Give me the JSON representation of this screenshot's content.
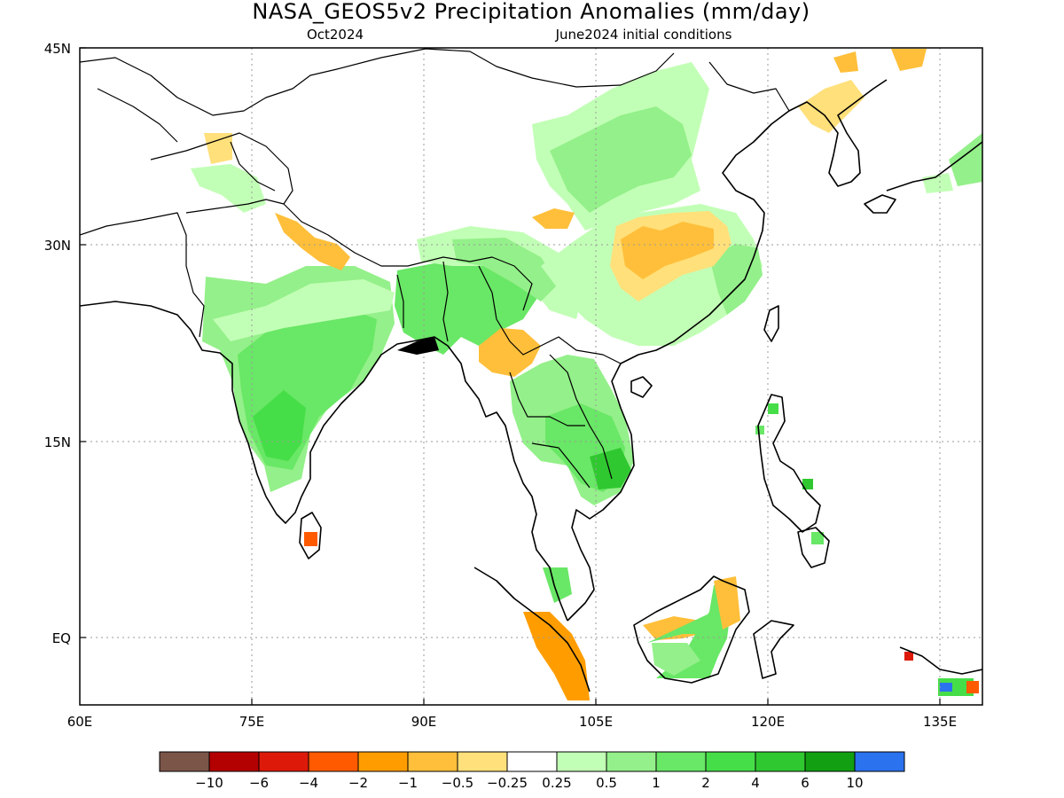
{
  "title": "NASA_GEOS5v2 Precipitation Anomalies (mm/day)",
  "subtitle_left": "Oct2024",
  "subtitle_right": "June2024 initial conditions",
  "lat_ticks": [
    "45N",
    "30N",
    "15N",
    "EQ"
  ],
  "lon_ticks": [
    "60E",
    "75E",
    "90E",
    "105E",
    "120E",
    "135E"
  ],
  "colorbar": {
    "labels": [
      "-10",
      "-6",
      "-4",
      "-2",
      "-1",
      "-0.5",
      "-0.25",
      "0.25",
      "0.5",
      "1",
      "2",
      "4",
      "6",
      "10"
    ],
    "colors": [
      "#7a5548",
      "#b30000",
      "#dd1a0a",
      "#ff5a00",
      "#ff9d00",
      "#ffbf3a",
      "#ffe07a",
      "#ffffff",
      "#c2ffb6",
      "#94f08a",
      "#69e766",
      "#46de48",
      "#30c830",
      "#12a012",
      "#2a72ee"
    ]
  }
}
